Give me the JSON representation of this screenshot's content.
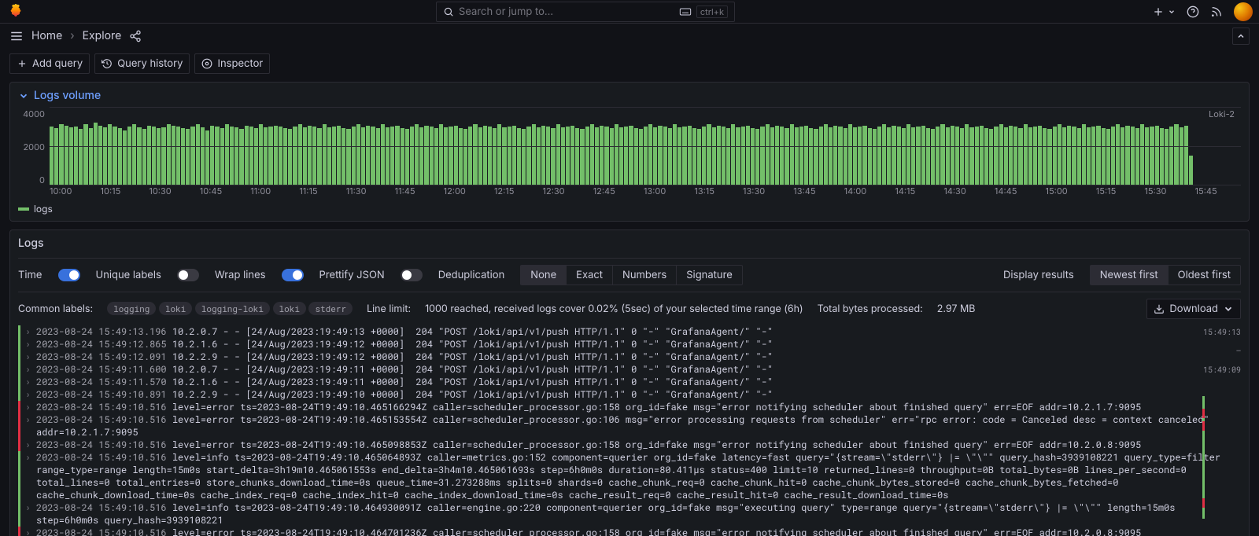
{
  "colors": {
    "bg": "#111217",
    "panel_bg": "#181b1f",
    "border": "#2c2c34",
    "text": "#ccccdc",
    "text_dim": "#8e8e99",
    "link": "#6e9fff",
    "green": "#73bf69",
    "red": "#e02f44",
    "blue": "#3871dc",
    "orange_grad_a": "#f5c518",
    "orange_grad_b": "#e07b00"
  },
  "topbar": {
    "search_placeholder": "Search or jump to...",
    "kbd": "ctrl+k"
  },
  "crumb": {
    "home": "Home",
    "current": "Explore"
  },
  "toolbar": {
    "add_query": "Add query",
    "query_history": "Query history",
    "inspector": "Inspector"
  },
  "logs_volume": {
    "title": "Logs volume",
    "series_name": "Loki-2",
    "legend": "logs",
    "ylim": [
      0,
      4000
    ],
    "ytick_step": 2000,
    "bar_max": 4000,
    "bar_color": "#73bf69",
    "grid_color": "#2c2c34",
    "xticks": [
      "10:00",
      "10:15",
      "10:30",
      "10:45",
      "11:00",
      "11:15",
      "11:30",
      "11:45",
      "12:00",
      "12:15",
      "12:30",
      "12:45",
      "13:00",
      "13:15",
      "13:30",
      "13:45",
      "14:00",
      "14:15",
      "14:30",
      "14:45",
      "15:00",
      "15:15",
      "15:30",
      "15:45"
    ],
    "bars": [
      3000,
      2900,
      3100,
      3050,
      2950,
      3000,
      2850,
      3100,
      2900,
      3200,
      3050,
      2950,
      3100,
      3000,
      2900,
      2800,
      3000,
      3100,
      2950,
      2850,
      3050,
      3000,
      2900,
      2950,
      3100,
      3050,
      3000,
      2900,
      2850,
      3000,
      3100,
      2950,
      2800,
      3050,
      3000,
      2900,
      3100,
      3000,
      2950,
      2850,
      3050,
      3000,
      2900,
      3100,
      2950,
      3000,
      3050,
      3000,
      2900,
      2850,
      3000,
      3100,
      2950,
      3050,
      3000,
      2900,
      3100,
      2950,
      3000,
      3050,
      2900,
      2850,
      3000,
      3100,
      2950,
      3050,
      3000,
      2900,
      3100,
      2950,
      3000,
      3050,
      2900,
      2850,
      3000,
      3100,
      2950,
      3050,
      3000,
      2900,
      3100,
      2950,
      3000,
      3050,
      2900,
      2850,
      3000,
      3100,
      2950,
      3050,
      3000,
      2900,
      3100,
      2950,
      3000,
      3050,
      2900,
      2850,
      3000,
      3100,
      2950,
      3050,
      3000,
      2900,
      3100,
      2950,
      3000,
      3050,
      2900,
      2850,
      3000,
      3100,
      2950,
      3050,
      3000,
      2900,
      3100,
      2950,
      3000,
      3050,
      2900,
      2850,
      3000,
      3100,
      2950,
      3050,
      3000,
      2900,
      3100,
      2950,
      3000,
      3050,
      2900,
      2850,
      3000,
      3100,
      2950,
      3050,
      3000,
      2900,
      3100,
      2950,
      3000,
      3050,
      2900,
      2850,
      3000,
      3100,
      2950,
      3050,
      3000,
      2900,
      3100,
      2950,
      3000,
      3050,
      2900,
      2850,
      3000,
      3100,
      2950,
      3050,
      3000,
      2900,
      3100,
      2950,
      3000,
      3050,
      2900,
      2850,
      3000,
      3100,
      2950,
      3050,
      3000,
      2900,
      3100,
      2950,
      3000,
      3050,
      2900,
      2850,
      3000,
      3100,
      2950,
      3050,
      3000,
      2900,
      3100,
      2950,
      3000,
      3050,
      2900,
      2850,
      3000,
      3100,
      2950,
      3050,
      3000,
      2900,
      3100,
      2950,
      3000,
      3050,
      2900,
      2850,
      3000,
      3100,
      2950,
      3050,
      3000,
      2900,
      3100,
      2950,
      3000,
      3050,
      2900,
      2850,
      3000,
      3100,
      2950,
      3050,
      3000,
      2900,
      3100,
      2950,
      3000,
      3050,
      2900,
      2850,
      3000,
      3100,
      2950,
      3050,
      1500
    ]
  },
  "logs_panel": {
    "title": "Logs",
    "controls": {
      "time_label": "Time",
      "time_on": true,
      "unique_label": "Unique labels",
      "unique_on": false,
      "wrap_label": "Wrap lines",
      "wrap_on": true,
      "prettify_label": "Prettify JSON",
      "prettify_on": false,
      "dedup_label": "Deduplication",
      "dedup_options": [
        "None",
        "Exact",
        "Numbers",
        "Signature"
      ],
      "dedup_active": 0,
      "display_label": "Display results",
      "sort_options": [
        "Newest first",
        "Oldest first"
      ],
      "sort_active": 0
    },
    "meta": {
      "common_labels_label": "Common labels:",
      "common_labels": [
        "logging",
        "loki",
        "logging-loki",
        "loki",
        "stderr"
      ],
      "line_limit_label": "Line limit:",
      "line_limit_text": "1000 reached, received logs cover 0.02% (5sec) of your selected time range (6h)",
      "total_bytes_label": "Total bytes processed:",
      "total_bytes_text": "2.97 MB",
      "download": "Download"
    },
    "level_colors": {
      "info": "#73bf69",
      "error": "#e02f44"
    },
    "minimap": {
      "labels": [
        "15:49:13",
        "—",
        "15:49:09"
      ],
      "bars": [
        {
          "top": 90,
          "height": 156,
          "color": "#73bf69"
        },
        {
          "top": 106,
          "height": 12,
          "color": "#e02f44"
        },
        {
          "top": 122,
          "height": 12,
          "color": "#e02f44"
        },
        {
          "top": 220,
          "height": 12,
          "color": "#e02f44"
        }
      ]
    },
    "lines": [
      {
        "level": "info",
        "ts": "2023-08-24 15:49:13.196",
        "body": "10.2.0.7 - - [24/Aug/2023:19:49:13 +0000]  204 \"POST /loki/api/v1/push HTTP/1.1\" 0 \"-\" \"GrafanaAgent/\" \"-\""
      },
      {
        "level": "info",
        "ts": "2023-08-24 15:49:12.865",
        "body": "10.2.1.6 - - [24/Aug/2023:19:49:12 +0000]  204 \"POST /loki/api/v1/push HTTP/1.1\" 0 \"-\" \"GrafanaAgent/\" \"-\""
      },
      {
        "level": "info",
        "ts": "2023-08-24 15:49:12.091",
        "body": "10.2.2.9 - - [24/Aug/2023:19:49:12 +0000]  204 \"POST /loki/api/v1/push HTTP/1.1\" 0 \"-\" \"GrafanaAgent/\" \"-\""
      },
      {
        "level": "info",
        "ts": "2023-08-24 15:49:11.600",
        "body": "10.2.0.7 - - [24/Aug/2023:19:49:11 +0000]  204 \"POST /loki/api/v1/push HTTP/1.1\" 0 \"-\" \"GrafanaAgent/\" \"-\""
      },
      {
        "level": "info",
        "ts": "2023-08-24 15:49:11.570",
        "body": "10.2.1.6 - - [24/Aug/2023:19:49:11 +0000]  204 \"POST /loki/api/v1/push HTTP/1.1\" 0 \"-\" \"GrafanaAgent/\" \"-\""
      },
      {
        "level": "info",
        "ts": "2023-08-24 15:49:10.891",
        "body": "10.2.2.9 - - [24/Aug/2023:19:49:10 +0000]  204 \"POST /loki/api/v1/push HTTP/1.1\" 0 \"-\" \"GrafanaAgent/\" \"-\""
      },
      {
        "level": "error",
        "ts": "2023-08-24 15:49:10.516",
        "body": "level=error ts=2023-08-24T19:49:10.465166294Z caller=scheduler_processor.go:158 org_id=fake msg=\"error notifying scheduler about finished query\" err=EOF addr=10.2.1.7:9095"
      },
      {
        "level": "error",
        "ts": "2023-08-24 15:49:10.516",
        "body": "level=error ts=2023-08-24T19:49:10.465153554Z caller=scheduler_processor.go:106 msg=\"error processing requests from scheduler\" err=\"rpc error: code = Canceled desc = context canceled\" addr=10.2.1.7:9095"
      },
      {
        "level": "error",
        "ts": "2023-08-24 15:49:10.516",
        "body": "level=error ts=2023-08-24T19:49:10.465098853Z caller=scheduler_processor.go:158 org_id=fake msg=\"error notifying scheduler about finished query\" err=EOF addr=10.2.0.8:9095"
      },
      {
        "level": "info",
        "ts": "2023-08-24 15:49:10.516",
        "body": "level=info ts=2023-08-24T19:49:10.465064893Z caller=metrics.go:152 component=querier org_id=fake latency=fast query=\"{stream=\\\"stderr\\\"} |= \\\"\\\"\" query_hash=3939108221 query_type=filter range_type=range length=15m0s start_delta=3h19m10.465061553s end_delta=3h4m10.465061693s step=6h0m0s duration=80.411µs status=400 limit=10 returned_lines=0 throughput=0B total_bytes=0B lines_per_second=0 total_lines=0 total_entries=0 store_chunks_download_time=0s queue_time=31.273288ms splits=0 shards=0 cache_chunk_req=0 cache_chunk_hit=0 cache_chunk_bytes_stored=0 cache_chunk_bytes_fetched=0 cache_chunk_download_time=0s cache_index_req=0 cache_index_hit=0 cache_index_download_time=0s cache_result_req=0 cache_result_hit=0 cache_result_download_time=0s"
      },
      {
        "level": "info",
        "ts": "2023-08-24 15:49:10.516",
        "body": "level=info ts=2023-08-24T19:49:10.464930091Z caller=engine.go:220 component=querier org_id=fake msg=\"executing query\" type=range query=\"{stream=\\\"stderr\\\"} |= \\\"\\\"\" length=15m0s step=6h0m0s query_hash=3939108221"
      },
      {
        "level": "error",
        "ts": "2023-08-24 15:49:10.516",
        "body": "level=error ts=2023-08-24T19:49:10.464701236Z caller=scheduler_processor.go:158 org_id=fake msg=\"error notifying scheduler about finished query\" err=EOF addr=10.2.0.8:9095"
      }
    ]
  }
}
